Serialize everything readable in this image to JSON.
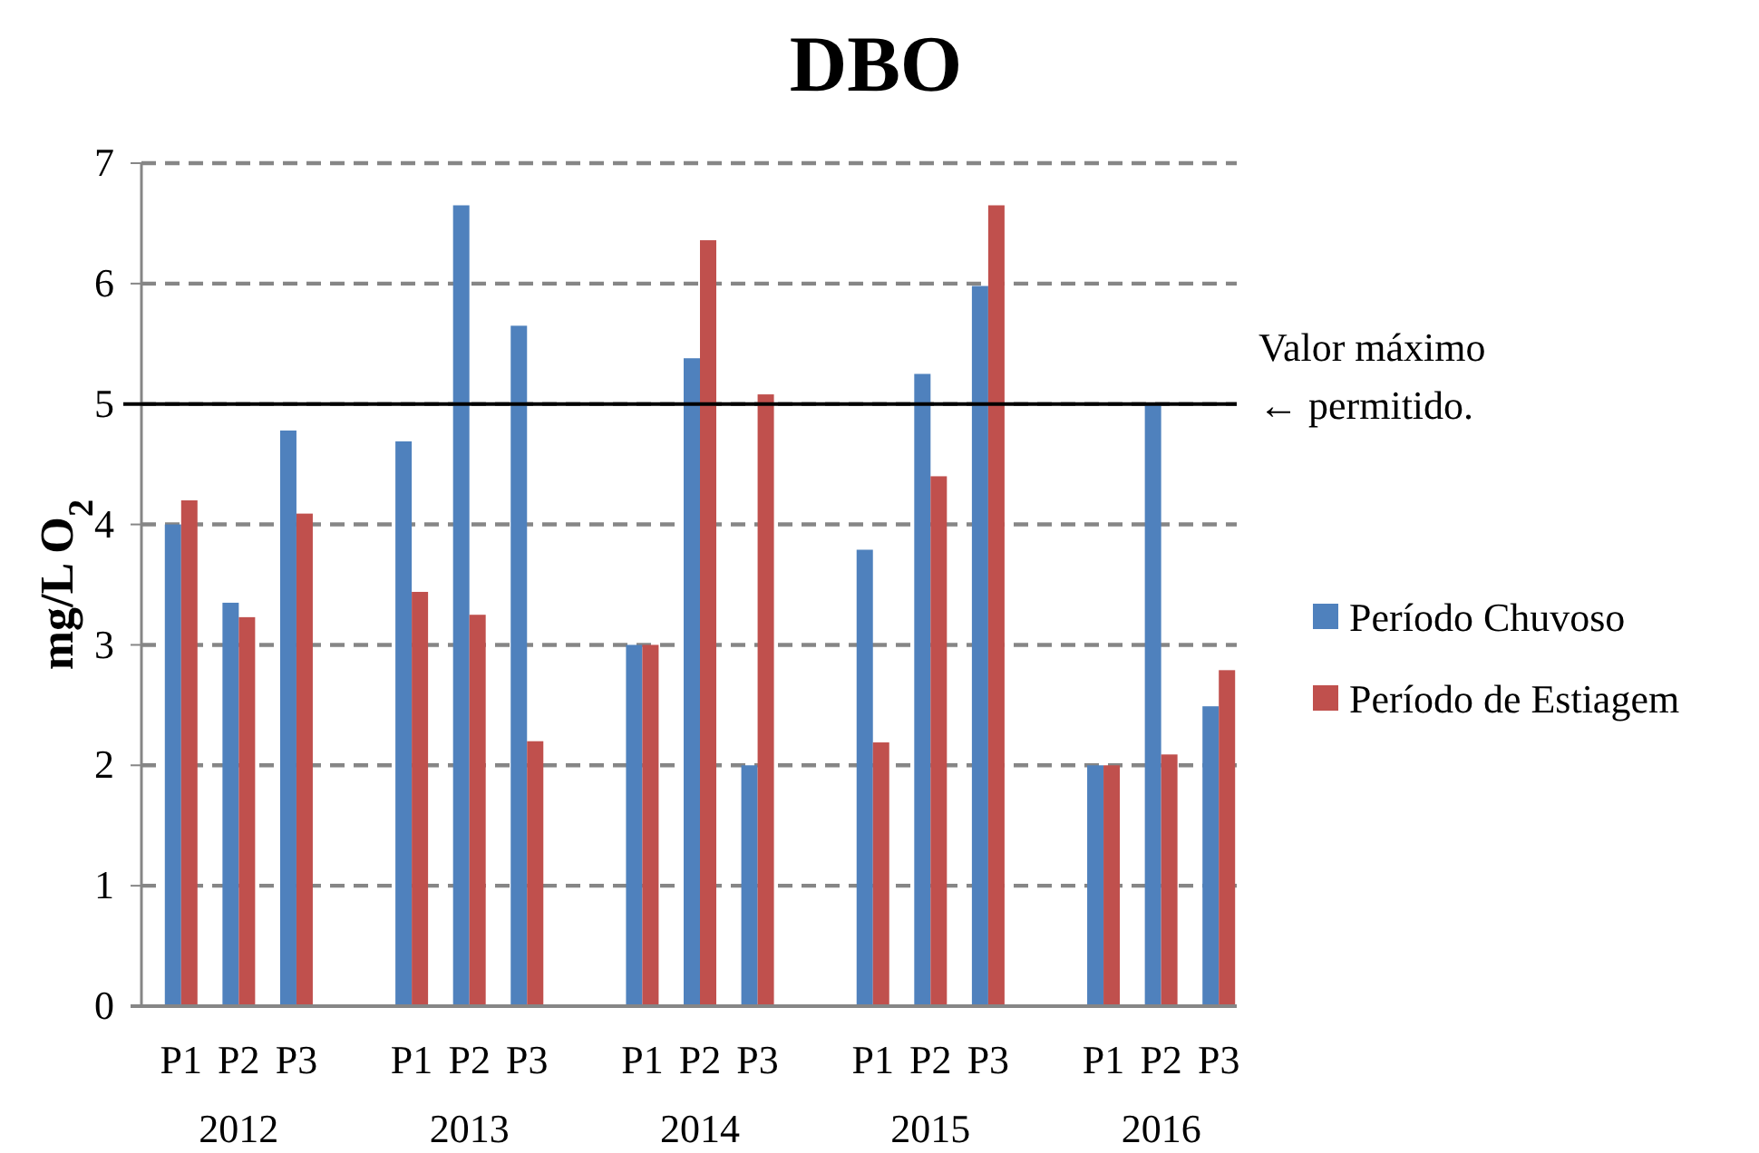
{
  "chart_data": {
    "type": "bar",
    "title": "DBO",
    "ylabel": "mg/L O$_{2}$",
    "categories": [
      "P1",
      "P2",
      "P3",
      null,
      "P1",
      "P2",
      "P3",
      null,
      "P1",
      "P2",
      "P3",
      null,
      "P1",
      "P2",
      "P3",
      null,
      "P1",
      "P2",
      "P3"
    ],
    "series": [
      {
        "name": "Período Chuvoso",
        "color": "#4f81bd",
        "values": [
          4.0,
          3.35,
          4.78,
          null,
          4.69,
          6.65,
          5.65,
          null,
          3.0,
          5.38,
          2.0,
          null,
          3.79,
          5.25,
          5.98,
          null,
          2.0,
          5.0,
          2.49
        ]
      },
      {
        "name": "Período de Estiagem",
        "color": "#c0504d",
        "values": [
          4.2,
          3.23,
          4.09,
          null,
          3.44,
          3.25,
          2.2,
          null,
          3.0,
          6.36,
          5.08,
          null,
          2.19,
          4.4,
          6.65,
          null,
          2.0,
          2.09,
          2.79
        ]
      }
    ],
    "ylim": [
      0,
      7
    ],
    "yticks": [
      0,
      1,
      2,
      3,
      4,
      5,
      6,
      7
    ],
    "grid": "y",
    "legend": "right",
    "ref_lines": [
      {
        "axis": "y",
        "value": 5,
        "label": "Valor máximo\n← permitido.",
        "color": "#000000",
        "line_style": "solid"
      }
    ],
    "annotations": [
      "2012",
      "2013",
      "2014",
      "2015",
      "2016"
    ]
  }
}
